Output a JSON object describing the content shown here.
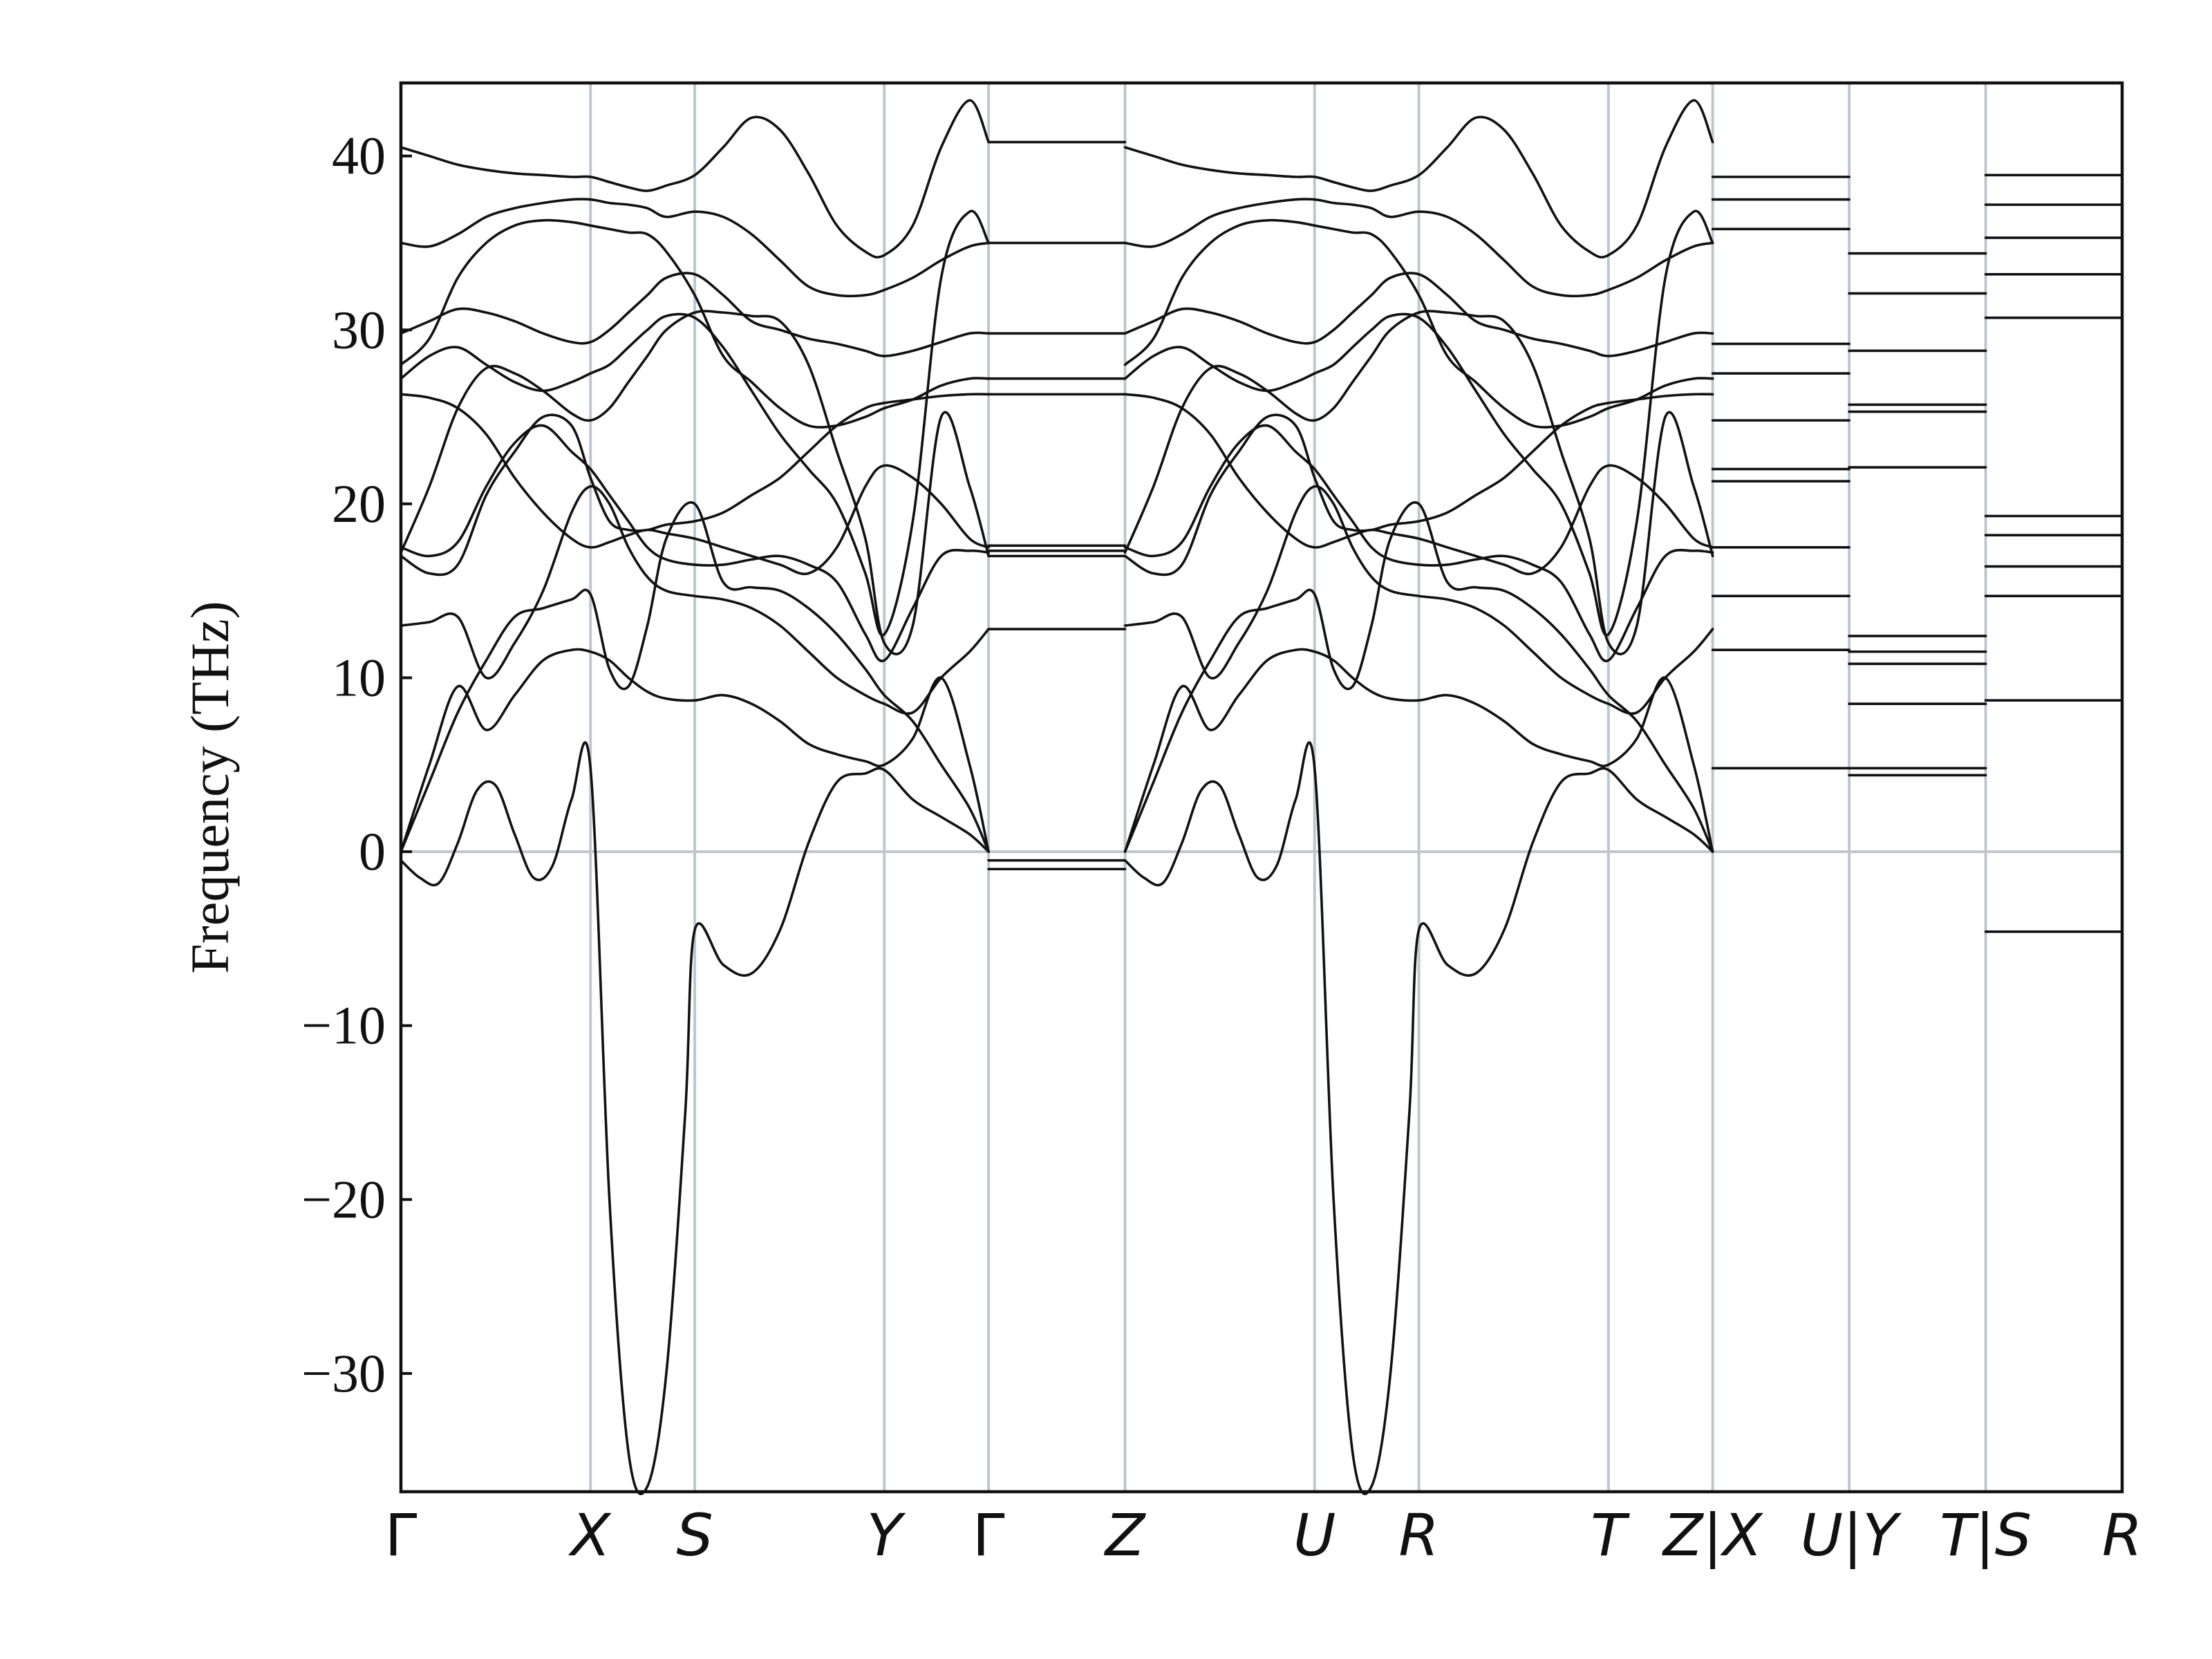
{
  "chart_data": {
    "type": "line",
    "title": "",
    "ylabel": "Frequency (THz)",
    "xlabel": "",
    "ylim": [
      -36.8,
      44.2
    ],
    "yticks": [
      -30,
      -20,
      -10,
      0,
      10,
      20,
      30,
      40
    ],
    "ytick_labels": [
      "−30",
      "−20",
      "−10",
      "0",
      "10",
      "20",
      "30",
      "40"
    ],
    "grid": "vertical lines at high-symmetry points, horizontal line at 0",
    "legend": "none",
    "xticks": [
      {
        "label": "Γ",
        "x": 0.0
      },
      {
        "label": "X",
        "x": 1.0
      },
      {
        "label": "S",
        "x": 1.55
      },
      {
        "label": "Y",
        "x": 2.55
      },
      {
        "label": "Γ",
        "x": 3.1
      },
      {
        "label": "Z",
        "x": 3.82
      },
      {
        "label": "U",
        "x": 4.82
      },
      {
        "label": "R",
        "x": 5.37
      },
      {
        "label": "T",
        "x": 6.37
      },
      {
        "label": "Z|X",
        "x": 6.92
      },
      {
        "label": "U|Y",
        "x": 7.64
      },
      {
        "label": "T|S",
        "x": 8.36
      },
      {
        "label": "R",
        "x": 9.08
      }
    ],
    "series": [
      {
        "x": [
          0.0,
          0.1,
          0.2,
          0.3,
          0.4,
          0.5,
          0.6,
          0.7,
          0.8,
          0.9,
          1.0,
          1.1,
          1.2,
          1.3,
          1.4,
          1.5,
          1.55,
          1.7,
          1.85,
          2.0,
          2.15,
          2.3,
          2.45,
          2.55,
          2.7,
          2.85,
          3.0,
          3.1
        ],
        "y": [
          -0.5,
          -1.5,
          -1.8,
          0.5,
          3.5,
          3.8,
          1.0,
          -1.5,
          -0.8,
          3.0,
          4.8,
          -20.0,
          -34.5,
          -36.5,
          -30.0,
          -15.0,
          -4.5,
          -6.5,
          -7.0,
          -4.5,
          0.5,
          4.0,
          4.5,
          4.7,
          3.0,
          2.0,
          1.0,
          0.0
        ]
      },
      {
        "x": [
          0.0,
          0.15,
          0.3,
          0.45,
          0.6,
          0.75,
          0.9,
          1.0,
          1.1,
          1.2,
          1.3,
          1.4,
          1.55,
          1.7,
          1.85,
          2.0,
          2.15,
          2.3,
          2.45,
          2.55,
          2.7,
          2.85,
          3.0,
          3.1
        ],
        "y": [
          0.0,
          4.0,
          8.0,
          11.0,
          13.5,
          14.0,
          14.5,
          14.8,
          10.5,
          9.5,
          13.0,
          18.0,
          20.0,
          15.5,
          15.2,
          15.0,
          14.0,
          12.5,
          10.5,
          9.0,
          7.5,
          5.0,
          2.5,
          0.0
        ]
      },
      {
        "x": [
          0.0,
          0.15,
          0.3,
          0.45,
          0.6,
          0.75,
          0.9,
          1.0,
          1.1,
          1.2,
          1.3,
          1.4,
          1.55,
          1.7,
          1.85,
          2.0,
          2.15,
          2.3,
          2.45,
          2.55,
          2.7,
          2.85,
          3.0,
          3.1
        ],
        "y": [
          0.0,
          5.0,
          9.5,
          7.0,
          9.0,
          11.0,
          11.6,
          11.5,
          11.0,
          10.0,
          9.2,
          8.8,
          8.7,
          9.0,
          8.5,
          7.5,
          6.2,
          5.6,
          5.2,
          5.0,
          6.5,
          10.0,
          5.0,
          0.0
        ]
      },
      {
        "x": [
          0.0,
          0.15,
          0.3,
          0.45,
          0.6,
          0.75,
          0.9,
          1.0,
          1.1,
          1.2,
          1.3,
          1.4,
          1.55,
          1.7,
          1.85,
          2.0,
          2.15,
          2.3,
          2.45,
          2.55,
          2.7,
          2.85,
          3.0,
          3.1
        ],
        "y": [
          13.0,
          13.2,
          13.5,
          10.0,
          12.0,
          15.0,
          19.5,
          21.0,
          20.0,
          17.5,
          15.8,
          15.0,
          14.7,
          14.5,
          14.0,
          13.0,
          11.5,
          10.0,
          9.0,
          8.5,
          8.0,
          10.0,
          11.5,
          12.8
        ]
      },
      {
        "x": [
          0.0,
          0.15,
          0.3,
          0.45,
          0.6,
          0.75,
          0.9,
          1.0,
          1.1,
          1.2,
          1.3,
          1.4,
          1.55,
          1.7,
          1.85,
          2.0,
          2.15,
          2.3,
          2.45,
          2.55,
          2.7,
          2.85,
          3.0,
          3.1
        ],
        "y": [
          17.5,
          17.0,
          17.8,
          21.0,
          23.5,
          24.5,
          23.0,
          22.0,
          20.5,
          19.0,
          17.5,
          16.8,
          16.5,
          16.5,
          16.8,
          17.0,
          16.5,
          15.5,
          12.5,
          11.0,
          14.0,
          17.0,
          17.3,
          17.2
        ]
      },
      {
        "x": [
          0.0,
          0.15,
          0.3,
          0.45,
          0.6,
          0.75,
          0.9,
          1.0,
          1.1,
          1.2,
          1.3,
          1.4,
          1.55,
          1.7,
          1.85,
          2.0,
          2.15,
          2.3,
          2.45,
          2.55,
          2.7,
          2.85,
          3.0,
          3.1
        ],
        "y": [
          17.0,
          16.0,
          16.5,
          20.5,
          23.0,
          25.0,
          24.5,
          21.5,
          19.0,
          18.5,
          18.5,
          18.8,
          19.0,
          19.5,
          20.5,
          21.5,
          23.0,
          24.5,
          25.5,
          25.8,
          26.0,
          26.2,
          26.3,
          26.3
        ]
      },
      {
        "x": [
          0.0,
          0.15,
          0.3,
          0.45,
          0.6,
          0.75,
          0.9,
          1.0,
          1.1,
          1.2,
          1.3,
          1.4,
          1.55,
          1.7,
          1.85,
          2.0,
          2.15,
          2.3,
          2.45,
          2.55,
          2.7,
          2.85,
          3.0,
          3.1
        ],
        "y": [
          26.3,
          26.1,
          25.5,
          24.0,
          21.5,
          19.5,
          18.0,
          17.5,
          17.8,
          18.2,
          18.5,
          18.3,
          18.0,
          17.5,
          17.0,
          16.5,
          16.0,
          17.5,
          21.0,
          22.2,
          21.5,
          20.0,
          18.0,
          17.5
        ]
      },
      {
        "x": [
          0.0,
          0.15,
          0.3,
          0.45,
          0.6,
          0.75,
          0.9,
          1.0,
          1.1,
          1.2,
          1.3,
          1.4,
          1.55,
          1.7,
          1.85,
          2.0,
          2.15,
          2.3,
          2.45,
          2.55,
          2.7,
          2.85,
          3.0,
          3.1
        ],
        "y": [
          17.2,
          21.0,
          25.5,
          27.8,
          27.5,
          26.5,
          25.2,
          24.8,
          25.5,
          27.0,
          28.5,
          30.0,
          31.0,
          31.0,
          30.8,
          30.5,
          28.0,
          23.0,
          18.0,
          12.0,
          13.0,
          25.0,
          21.0,
          17.0
        ]
      },
      {
        "x": [
          0.0,
          0.15,
          0.3,
          0.45,
          0.6,
          0.75,
          0.9,
          1.0,
          1.1,
          1.2,
          1.3,
          1.4,
          1.55,
          1.7,
          1.85,
          2.0,
          2.15,
          2.3,
          2.45,
          2.55,
          2.7,
          2.85,
          3.0,
          3.1
        ],
        "y": [
          27.2,
          28.5,
          29.0,
          28.0,
          27.0,
          26.5,
          27.0,
          27.5,
          28.0,
          29.0,
          30.0,
          30.8,
          30.7,
          29.0,
          26.5,
          24.0,
          22.0,
          20.0,
          16.0,
          12.5,
          19.0,
          33.0,
          36.8,
          35.0
        ]
      },
      {
        "x": [
          0.0,
          0.15,
          0.3,
          0.45,
          0.6,
          0.75,
          0.9,
          1.0,
          1.1,
          1.2,
          1.3,
          1.4,
          1.55,
          1.7,
          1.85,
          2.0,
          2.15,
          2.3,
          2.45,
          2.55,
          2.7,
          2.85,
          3.0,
          3.1
        ],
        "y": [
          28.0,
          29.5,
          33.0,
          35.0,
          36.0,
          36.3,
          36.2,
          36.0,
          35.8,
          35.6,
          35.5,
          34.5,
          32.0,
          28.5,
          27.0,
          25.5,
          24.5,
          24.5,
          25.0,
          25.5,
          26.0,
          26.8,
          27.2,
          27.2
        ]
      },
      {
        "x": [
          0.0,
          0.15,
          0.3,
          0.45,
          0.6,
          0.75,
          0.9,
          1.0,
          1.1,
          1.2,
          1.3,
          1.4,
          1.55,
          1.7,
          1.85,
          2.0,
          2.15,
          2.3,
          2.45,
          2.55,
          2.7,
          2.85,
          3.0,
          3.1
        ],
        "y": [
          29.8,
          30.5,
          31.2,
          31.0,
          30.5,
          29.8,
          29.3,
          29.3,
          30.0,
          31.0,
          32.0,
          33.0,
          33.2,
          32.0,
          30.5,
          30.0,
          29.5,
          29.2,
          28.8,
          28.5,
          28.8,
          29.3,
          29.8,
          29.8
        ]
      },
      {
        "x": [
          0.0,
          0.15,
          0.3,
          0.45,
          0.6,
          0.75,
          0.9,
          1.0,
          1.1,
          1.2,
          1.3,
          1.4,
          1.55,
          1.7,
          1.85,
          2.0,
          2.15,
          2.3,
          2.45,
          2.55,
          2.7,
          2.85,
          3.0,
          3.1
        ],
        "y": [
          35.0,
          34.8,
          35.5,
          36.5,
          37.0,
          37.3,
          37.5,
          37.5,
          37.3,
          37.2,
          37.0,
          36.5,
          36.8,
          36.5,
          35.5,
          34.0,
          32.5,
          32.0,
          32.0,
          32.3,
          33.0,
          34.0,
          34.8,
          35.0
        ]
      },
      {
        "x": [
          0.0,
          0.15,
          0.3,
          0.45,
          0.6,
          0.75,
          0.9,
          1.0,
          1.1,
          1.2,
          1.3,
          1.4,
          1.55,
          1.7,
          1.85,
          2.0,
          2.15,
          2.3,
          2.45,
          2.55,
          2.7,
          2.85,
          3.0,
          3.1
        ],
        "y": [
          40.5,
          40.0,
          39.5,
          39.2,
          39.0,
          38.9,
          38.8,
          38.8,
          38.5,
          38.2,
          38.0,
          38.3,
          38.9,
          40.5,
          42.2,
          41.5,
          39.0,
          36.0,
          34.5,
          34.3,
          36.0,
          40.5,
          43.2,
          40.8
        ]
      },
      {
        "x": [
          3.1,
          3.82
        ],
        "y": [
          40.8,
          40.8
        ]
      },
      {
        "x": [
          3.1,
          3.82
        ],
        "y": [
          35.0,
          35.0
        ]
      },
      {
        "x": [
          3.1,
          3.82
        ],
        "y": [
          29.8,
          29.8
        ]
      },
      {
        "x": [
          3.1,
          3.82
        ],
        "y": [
          27.2,
          27.2
        ]
      },
      {
        "x": [
          3.1,
          3.82
        ],
        "y": [
          26.3,
          26.3
        ]
      },
      {
        "x": [
          3.1,
          3.82
        ],
        "y": [
          17.6,
          17.6
        ]
      },
      {
        "x": [
          3.1,
          3.82
        ],
        "y": [
          17.3,
          17.3
        ]
      },
      {
        "x": [
          3.1,
          3.82
        ],
        "y": [
          17.0,
          17.0
        ]
      },
      {
        "x": [
          3.1,
          3.82
        ],
        "y": [
          12.8,
          12.8
        ]
      },
      {
        "x": [
          3.1,
          3.82
        ],
        "y": [
          -1.0,
          -1.0
        ]
      },
      {
        "x": [
          3.1,
          3.82
        ],
        "y": [
          -0.5,
          -0.5
        ]
      },
      {
        "x": [
          6.92,
          7.64
        ],
        "y": [
          38.8,
          38.8
        ]
      },
      {
        "x": [
          6.92,
          7.64
        ],
        "y": [
          37.5,
          37.5
        ]
      },
      {
        "x": [
          6.92,
          7.64
        ],
        "y": [
          35.8,
          35.8
        ]
      },
      {
        "x": [
          6.92,
          7.64
        ],
        "y": [
          29.2,
          29.2
        ]
      },
      {
        "x": [
          6.92,
          7.64
        ],
        "y": [
          27.5,
          27.5
        ]
      },
      {
        "x": [
          6.92,
          7.64
        ],
        "y": [
          24.8,
          24.8
        ]
      },
      {
        "x": [
          6.92,
          7.64
        ],
        "y": [
          22.0,
          22.0
        ]
      },
      {
        "x": [
          6.92,
          7.64
        ],
        "y": [
          21.3,
          21.3
        ]
      },
      {
        "x": [
          6.92,
          7.64
        ],
        "y": [
          17.5,
          17.5
        ]
      },
      {
        "x": [
          6.92,
          7.64
        ],
        "y": [
          14.7,
          14.7
        ]
      },
      {
        "x": [
          6.92,
          7.64
        ],
        "y": [
          11.6,
          11.6
        ]
      },
      {
        "x": [
          6.92,
          7.64
        ],
        "y": [
          4.8,
          4.8
        ]
      },
      {
        "x": [
          7.64,
          8.36
        ],
        "y": [
          34.4,
          34.4
        ]
      },
      {
        "x": [
          7.64,
          8.36
        ],
        "y": [
          32.1,
          32.1
        ]
      },
      {
        "x": [
          7.64,
          8.36
        ],
        "y": [
          28.8,
          28.8
        ]
      },
      {
        "x": [
          7.64,
          8.36
        ],
        "y": [
          25.7,
          25.7
        ]
      },
      {
        "x": [
          7.64,
          8.36
        ],
        "y": [
          25.3,
          25.3
        ]
      },
      {
        "x": [
          7.64,
          8.36
        ],
        "y": [
          22.1,
          22.1
        ]
      },
      {
        "x": [
          7.64,
          8.36
        ],
        "y": [
          12.4,
          12.4
        ]
      },
      {
        "x": [
          7.64,
          8.36
        ],
        "y": [
          11.5,
          11.5
        ]
      },
      {
        "x": [
          7.64,
          8.36
        ],
        "y": [
          10.8,
          10.8
        ]
      },
      {
        "x": [
          7.64,
          8.36
        ],
        "y": [
          8.5,
          8.5
        ]
      },
      {
        "x": [
          7.64,
          8.36
        ],
        "y": [
          4.8,
          4.8
        ]
      },
      {
        "x": [
          7.64,
          8.36
        ],
        "y": [
          4.4,
          4.4
        ]
      },
      {
        "x": [
          8.36,
          9.08
        ],
        "y": [
          38.9,
          38.9
        ]
      },
      {
        "x": [
          8.36,
          9.08
        ],
        "y": [
          37.2,
          37.2
        ]
      },
      {
        "x": [
          8.36,
          9.08
        ],
        "y": [
          35.3,
          35.3
        ]
      },
      {
        "x": [
          8.36,
          9.08
        ],
        "y": [
          33.2,
          33.2
        ]
      },
      {
        "x": [
          8.36,
          9.08
        ],
        "y": [
          30.7,
          30.7
        ]
      },
      {
        "x": [
          8.36,
          9.08
        ],
        "y": [
          19.3,
          19.3
        ]
      },
      {
        "x": [
          8.36,
          9.08
        ],
        "y": [
          18.2,
          18.2
        ]
      },
      {
        "x": [
          8.36,
          9.08
        ],
        "y": [
          16.4,
          16.4
        ]
      },
      {
        "x": [
          8.36,
          9.08
        ],
        "y": [
          14.7,
          14.7
        ]
      },
      {
        "x": [
          8.36,
          9.08
        ],
        "y": [
          8.7,
          8.7
        ]
      },
      {
        "x": [
          8.36,
          9.08
        ],
        "y": [
          -4.6,
          -4.6
        ]
      }
    ],
    "mirror": {
      "from": [
        0.0,
        3.1
      ],
      "to": [
        3.82,
        6.92
      ]
    }
  }
}
